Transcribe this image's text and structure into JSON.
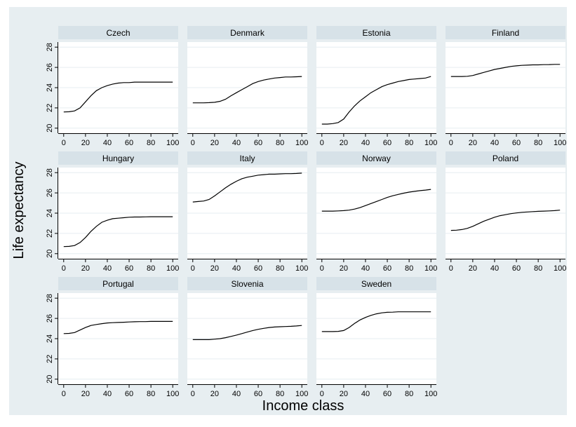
{
  "chart_data": {
    "type": "line",
    "xlabel": "Income class",
    "ylabel": "Life expectancy",
    "xlim": [
      -5,
      105
    ],
    "ylim": [
      19.5,
      28.5
    ],
    "xticks": [
      0,
      20,
      40,
      60,
      80,
      100
    ],
    "xtick_labels": [
      "0",
      "20",
      "40",
      "60",
      "80",
      "100"
    ],
    "yticks": [
      20,
      22,
      24,
      26,
      28
    ],
    "ytick_labels": [
      "20",
      "22",
      "24",
      "26",
      "28"
    ],
    "grid": true,
    "legend": "none",
    "colors": {
      "outer_background": "#e7eef1",
      "panel_background": "#ffffff",
      "strip_background": "#d7e2e8",
      "gridline": "#e6eef1",
      "line": "#000000"
    },
    "x": [
      0,
      5,
      10,
      15,
      20,
      25,
      30,
      35,
      40,
      45,
      50,
      55,
      60,
      65,
      70,
      75,
      80,
      85,
      90,
      95,
      100
    ],
    "panels": [
      {
        "title": "Czech",
        "values": [
          21.6,
          21.62,
          21.7,
          22.0,
          22.6,
          23.2,
          23.7,
          24.0,
          24.2,
          24.35,
          24.45,
          24.5,
          24.5,
          24.55,
          24.55,
          24.55,
          24.55,
          24.55,
          24.55,
          24.55,
          24.55
        ]
      },
      {
        "title": "Denmark",
        "values": [
          22.5,
          22.5,
          22.5,
          22.52,
          22.55,
          22.65,
          22.85,
          23.2,
          23.5,
          23.8,
          24.1,
          24.4,
          24.6,
          24.75,
          24.85,
          24.95,
          25.0,
          25.05,
          25.05,
          25.07,
          25.1
        ]
      },
      {
        "title": "Estonia",
        "values": [
          20.4,
          20.4,
          20.45,
          20.55,
          20.9,
          21.6,
          22.2,
          22.7,
          23.1,
          23.5,
          23.8,
          24.1,
          24.3,
          24.45,
          24.6,
          24.7,
          24.8,
          24.85,
          24.9,
          24.95,
          25.1
        ]
      },
      {
        "title": "Finland",
        "values": [
          25.1,
          25.1,
          25.1,
          25.12,
          25.2,
          25.35,
          25.5,
          25.65,
          25.8,
          25.9,
          26.0,
          26.1,
          26.15,
          26.2,
          26.22,
          26.25,
          26.25,
          26.27,
          26.28,
          26.3,
          26.3
        ]
      },
      {
        "title": "Hungary",
        "values": [
          20.7,
          20.72,
          20.8,
          21.1,
          21.6,
          22.2,
          22.7,
          23.1,
          23.3,
          23.45,
          23.5,
          23.55,
          23.6,
          23.62,
          23.62,
          23.63,
          23.65,
          23.65,
          23.65,
          23.65,
          23.65
        ]
      },
      {
        "title": "Italy",
        "values": [
          25.1,
          25.15,
          25.2,
          25.35,
          25.7,
          26.1,
          26.5,
          26.85,
          27.15,
          27.4,
          27.55,
          27.65,
          27.75,
          27.8,
          27.85,
          27.85,
          27.88,
          27.9,
          27.9,
          27.92,
          27.95
        ]
      },
      {
        "title": "Norway",
        "values": [
          24.2,
          24.2,
          24.2,
          24.22,
          24.25,
          24.3,
          24.4,
          24.55,
          24.75,
          24.95,
          25.15,
          25.35,
          25.55,
          25.72,
          25.85,
          25.97,
          26.08,
          26.15,
          26.22,
          26.28,
          26.35
        ]
      },
      {
        "title": "Poland",
        "values": [
          22.3,
          22.32,
          22.38,
          22.5,
          22.7,
          22.95,
          23.2,
          23.4,
          23.6,
          23.75,
          23.85,
          23.95,
          24.02,
          24.08,
          24.12,
          24.15,
          24.18,
          24.2,
          24.22,
          24.25,
          24.3
        ]
      },
      {
        "title": "Portugal",
        "values": [
          24.5,
          24.52,
          24.6,
          24.85,
          25.1,
          25.3,
          25.4,
          25.48,
          25.55,
          25.58,
          25.6,
          25.62,
          25.65,
          25.67,
          25.68,
          25.68,
          25.7,
          25.7,
          25.7,
          25.7,
          25.7
        ]
      },
      {
        "title": "Slovenia",
        "values": [
          23.9,
          23.9,
          23.9,
          23.9,
          23.95,
          24.0,
          24.1,
          24.22,
          24.35,
          24.5,
          24.65,
          24.8,
          24.92,
          25.02,
          25.1,
          25.15,
          25.18,
          25.2,
          25.22,
          25.25,
          25.3
        ]
      },
      {
        "title": "Sweden",
        "values": [
          24.7,
          24.7,
          24.7,
          24.72,
          24.8,
          25.1,
          25.5,
          25.85,
          26.1,
          26.3,
          26.45,
          26.55,
          26.6,
          26.62,
          26.65,
          26.65,
          26.65,
          26.65,
          26.65,
          26.65,
          26.65
        ]
      }
    ]
  }
}
